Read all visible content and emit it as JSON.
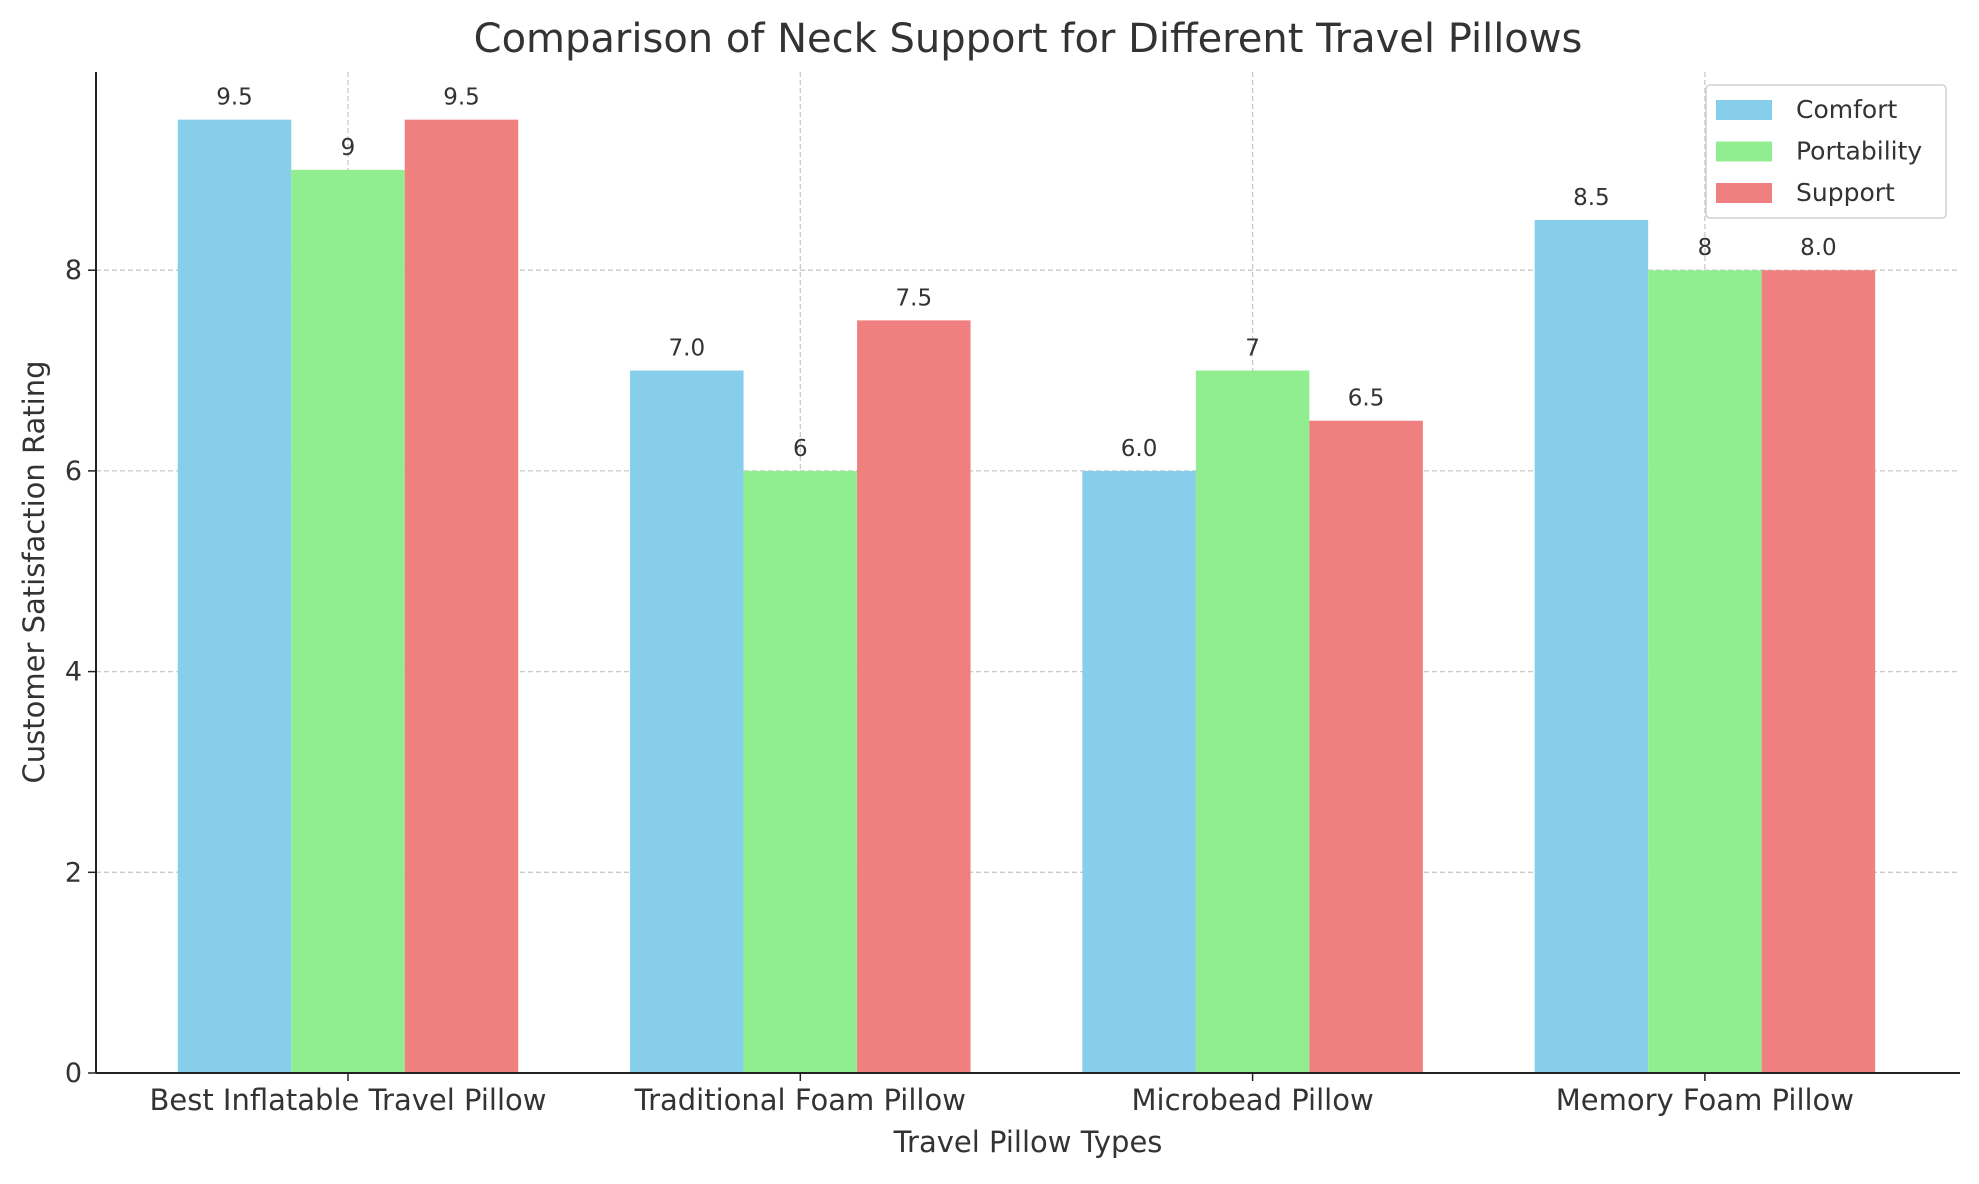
{
  "chart_data": {
    "type": "bar",
    "title": "Comparison of Neck Support for Different Travel Pillows",
    "xlabel": "Travel Pillow Types",
    "ylabel": "Customer Satisfaction Rating",
    "categories": [
      "Best Inflatable Travel Pillow",
      "Traditional Foam Pillow",
      "Microbead Pillow",
      "Memory Foam Pillow"
    ],
    "series": [
      {
        "name": "Comfort",
        "color": "#87CEEB",
        "values": [
          9.5,
          7.0,
          6.0,
          8.5
        ],
        "labels": [
          "9.5",
          "7.0",
          "6.0",
          "8.5"
        ]
      },
      {
        "name": "Portability",
        "color": "#90EE90",
        "values": [
          9,
          6,
          7,
          8
        ],
        "labels": [
          "9",
          "6",
          "7",
          "8"
        ]
      },
      {
        "name": "Support",
        "color": "#F08080",
        "values": [
          9.5,
          7.5,
          6.5,
          8.0
        ],
        "labels": [
          "9.5",
          "7.5",
          "6.5",
          "8.0"
        ]
      }
    ],
    "ylim": [
      0,
      9.975
    ],
    "yticks": [
      0,
      2,
      4,
      6,
      8
    ],
    "grid": true,
    "legend_position": "top-right"
  }
}
